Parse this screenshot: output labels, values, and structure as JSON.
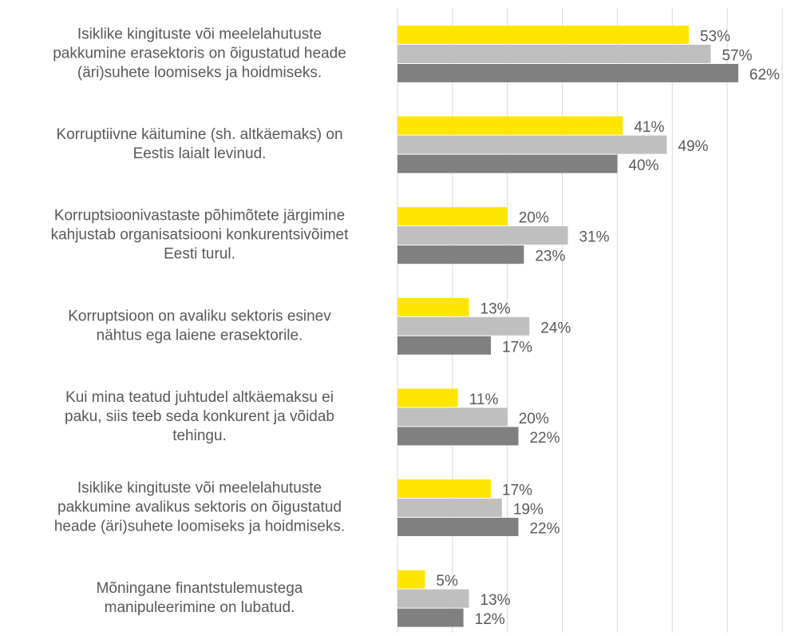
{
  "chart_data": {
    "type": "hbar",
    "categories": [
      [
        "Isiklike kingituste või meelelahutuste",
        "pakkumine erasektoris on õigustatud heade",
        "(äri)suhete loomiseks ja hoidmiseks."
      ],
      [
        "Korruptiivne käitumine (sh. altkäemaks) on",
        "Eestis laialt levinud."
      ],
      [
        "Korruptsioonivastaste põhimõtete järgimine",
        "kahjustab organisatsiooni konkurentsivõimet",
        "Eesti turul."
      ],
      [
        "Korruptsioon on avaliku sektoris esinev",
        "nähtus ega laiene erasektorile."
      ],
      [
        "Kui mina teatud juhtudel altkäemaksu ei",
        "paku, siis teeb seda konkurent ja võidab",
        "tehingu."
      ],
      [
        "Isiklike kingituste või meelelahutuste",
        "pakkumine avalikus sektoris on õigustatud",
        "heade (äri)suhete loomiseks ja hoidmiseks."
      ],
      [
        "Mõningane finantstulemustega",
        "manipuleerimine on lubatud."
      ]
    ],
    "series": [
      {
        "color": "#ffe600",
        "values": [
          53,
          41,
          20,
          13,
          11,
          17,
          5
        ],
        "value_labels": [
          "53%",
          "41%",
          "20%",
          "13%",
          "11%",
          "17%",
          "5%"
        ]
      },
      {
        "color": "#bfbfbf",
        "values": [
          57,
          49,
          31,
          24,
          20,
          19,
          13
        ],
        "value_labels": [
          "57%",
          "49%",
          "31%",
          "24%",
          "20%",
          "19%",
          "13%"
        ]
      },
      {
        "color": "#808080",
        "values": [
          62,
          40,
          23,
          17,
          22,
          22,
          12
        ],
        "value_labels": [
          "62%",
          "40%",
          "23%",
          "17%",
          "22%",
          "22%",
          "12%"
        ]
      }
    ],
    "xlim": [
      0,
      70
    ],
    "xticks": [
      0,
      10,
      20,
      30,
      40,
      50,
      60,
      70
    ],
    "grid": true
  }
}
